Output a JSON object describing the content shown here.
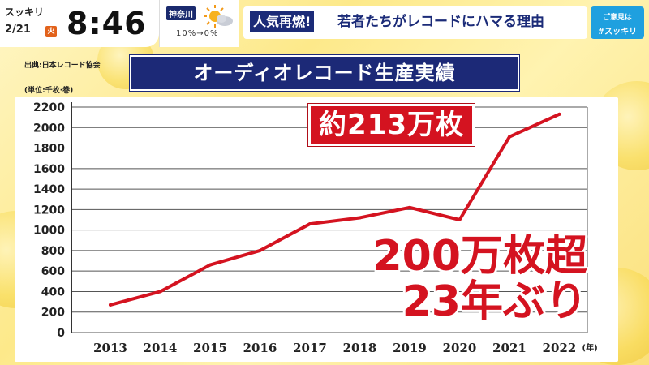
{
  "broadcast": {
    "show_name": "スッキリ",
    "date": "2/21",
    "weekday": "火",
    "time": "8:46",
    "region": "神奈川",
    "precip": "10%→0%",
    "headline_tag": "人気再燃!",
    "headline": "若者たちがレコードにハマる理由",
    "opinion_line1": "ご意見は",
    "opinion_line2": "#スッキリ",
    "weather_icon": "sun-cloud-icon"
  },
  "chart_header": {
    "source": "出典:日本レコード協会",
    "unit": "(単位:千枚·巻)",
    "title": "オーディオレコード生産実績"
  },
  "annotations": {
    "peak": "約213万枚",
    "milestone_line1": "200万枚超",
    "milestone_line2": "23年ぶり"
  },
  "chart_data": {
    "type": "line",
    "title": "オーディオレコード生産実績",
    "xlabel": "",
    "ylabel": "",
    "x_unit": "(年)",
    "categories": [
      "2013",
      "2014",
      "2015",
      "2016",
      "2017",
      "2018",
      "2019",
      "2020",
      "2021",
      "2022"
    ],
    "values": [
      270,
      400,
      660,
      800,
      1060,
      1120,
      1220,
      1100,
      1910,
      2130
    ],
    "ylim": [
      0,
      2200
    ],
    "yticks": [
      0,
      200,
      400,
      600,
      800,
      1000,
      1200,
      1400,
      1600,
      1800,
      2000,
      2200
    ],
    "grid": true,
    "line_color": "#d41320"
  }
}
